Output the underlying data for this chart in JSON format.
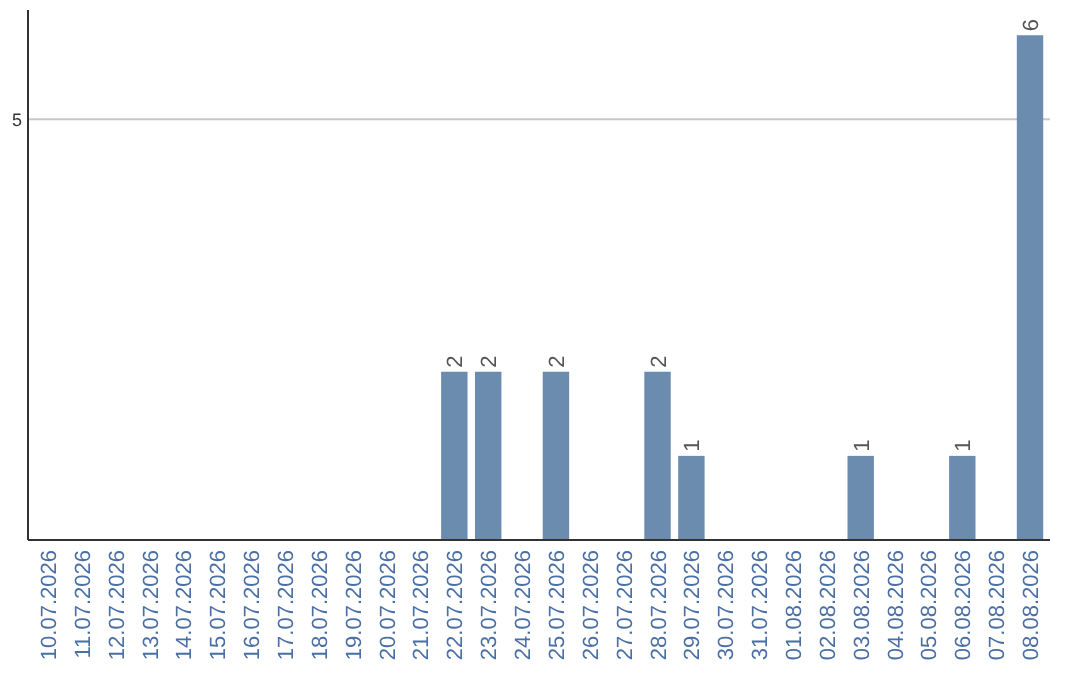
{
  "chart_data": {
    "type": "bar",
    "categories": [
      "10.07.2026",
      "11.07.2026",
      "12.07.2026",
      "13.07.2026",
      "14.07.2026",
      "15.07.2026",
      "16.07.2026",
      "17.07.2026",
      "18.07.2026",
      "19.07.2026",
      "20.07.2026",
      "21.07.2026",
      "22.07.2026",
      "23.07.2026",
      "24.07.2026",
      "25.07.2026",
      "26.07.2026",
      "27.07.2026",
      "28.07.2026",
      "29.07.2026",
      "30.07.2026",
      "31.07.2026",
      "01.08.2026",
      "02.08.2026",
      "03.08.2026",
      "04.08.2026",
      "05.08.2026",
      "06.08.2026",
      "07.08.2026",
      "08.08.2026"
    ],
    "values": [
      null,
      null,
      null,
      null,
      null,
      null,
      null,
      null,
      null,
      null,
      null,
      null,
      2,
      2,
      null,
      2,
      null,
      null,
      2,
      1,
      null,
      null,
      null,
      null,
      1,
      null,
      null,
      1,
      null,
      6
    ],
    "data_labels": true,
    "color": "#6b8cae",
    "ylim": [
      0,
      6.3
    ],
    "yticks": [
      5
    ],
    "grid": "y"
  }
}
